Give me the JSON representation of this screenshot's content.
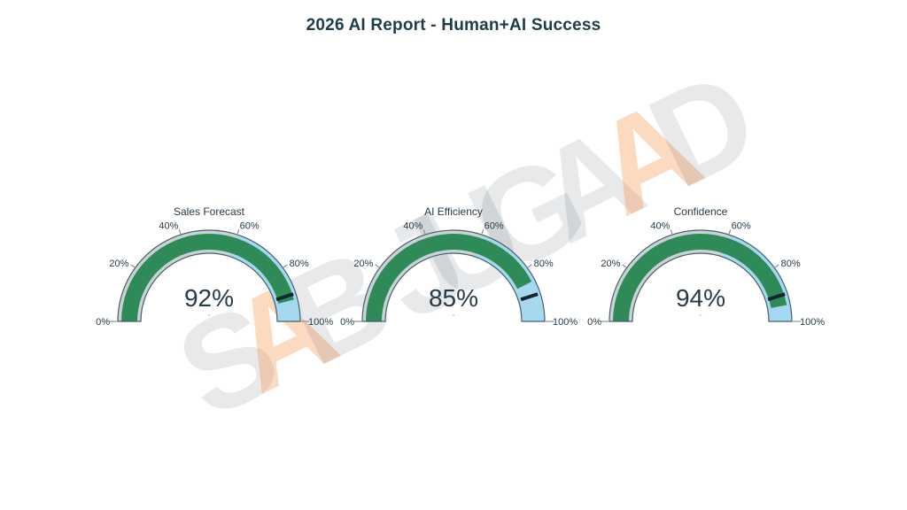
{
  "page": {
    "background": "#ffffff"
  },
  "header": {
    "title": "2026 AI Report - Human+AI Success",
    "color": "#1d3e49"
  },
  "watermark": {
    "text": "SAB JUGAAD",
    "words": [
      {
        "letters": [
          {
            "ch": "S",
            "tone": "gray"
          },
          {
            "ch": "A",
            "tone": "orange"
          },
          {
            "ch": "B",
            "tone": "gray"
          }
        ]
      },
      {
        "letters": [
          {
            "ch": "J",
            "tone": "gray"
          },
          {
            "ch": "U",
            "tone": "gray"
          },
          {
            "ch": "G",
            "tone": "gray"
          },
          {
            "ch": "A",
            "tone": "gray"
          },
          {
            "ch": "A",
            "tone": "orange"
          },
          {
            "ch": "D",
            "tone": "gray"
          }
        ]
      }
    ],
    "gray_color": "rgba(70,85,95,0.13)",
    "orange_color": "rgba(245,140,60,0.32)"
  },
  "chart_data": {
    "type": "gauge",
    "title": "2026 AI Report - Human+AI Success",
    "gauges": [
      {
        "title": "Sales Forecast",
        "value": 92,
        "number_display": "92%",
        "delta_display": "-"
      },
      {
        "title": "AI Efficiency",
        "value": 85,
        "number_display": "85%",
        "delta_display": "-"
      },
      {
        "title": "Confidence",
        "value": 94,
        "number_display": "94%",
        "delta_display": "-"
      }
    ],
    "axis": {
      "range": [
        0,
        100
      ],
      "ticks": [
        0,
        20,
        40,
        60,
        80,
        100
      ],
      "tick_suffix": "%"
    },
    "styles": {
      "bar_color": "#2e8b57",
      "track_color": "#cbd2d6",
      "step": {
        "range": [
          60,
          100
        ],
        "color": "#a6d9f0"
      },
      "threshold": {
        "value": 90,
        "color": "#15242e",
        "width": 4
      },
      "outline_color": "#45606c",
      "tick_color": "#7d8b92",
      "text_color": "#263b47",
      "delta_color": "#aab3b8"
    },
    "layout": {
      "grid": false,
      "legend": false,
      "orientation": "semicircle"
    }
  }
}
